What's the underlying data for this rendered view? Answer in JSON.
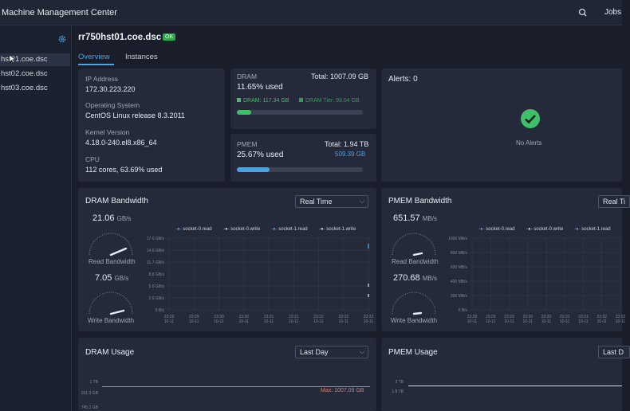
{
  "app_title": "Machine Management Center",
  "top_jobs": "Jobs",
  "sidebar": {
    "items": [
      {
        "label": "hst01.coe.dsc"
      },
      {
        "label": "hst02.coe.dsc"
      },
      {
        "label": "hst03.coe.dsc"
      }
    ]
  },
  "host": {
    "name": "rr750hst01.coe.dsc",
    "status": "OK"
  },
  "tabs": [
    {
      "label": "Overview"
    },
    {
      "label": "Instances"
    }
  ],
  "info": {
    "ip_label": "IP Address",
    "ip_value": "172.30.223.220",
    "os_label": "Operating System",
    "os_value": "CentOS Linux release 8.3.2011",
    "kernel_label": "Kernel Version",
    "kernel_value": "4.18.0-240.el8.x86_64",
    "cpu_label": "CPU",
    "cpu_value": "112 cores, 63.69% used"
  },
  "dram": {
    "label": "DRAM",
    "total": "Total: 1007.09 GB",
    "used": "11.65% used",
    "dram_legend": "DRAM: 117.34 GB",
    "tier_legend": "DRAM Tier: 99.04 GB",
    "dram_fraction": 0.1165,
    "tier_fraction": 0.0983
  },
  "pmem": {
    "label": "PMEM",
    "total": "Total: 1.94 TB",
    "used": "25.67% used",
    "sub": "509.39 GB",
    "fraction": 0.2567
  },
  "alerts": {
    "title": "Alerts: 0",
    "empty": "No Alerts"
  },
  "dram_bandwidth": {
    "title": "DRAM Bandwidth",
    "range": "Real Time",
    "read_value": "21.06",
    "read_unit": "GB/s",
    "read_label": "Read Bandwidth",
    "write_value": "7.05",
    "write_unit": "GB/s",
    "write_label": "Write Bandwidth",
    "legend": [
      "socket-0.read",
      "socket-0.write",
      "socket-1.read",
      "socket-1.write"
    ],
    "y_ticks": [
      "17.6 GB/s",
      "14.6 GB/s",
      "11.7 GB/s",
      "8.8 GB/s",
      "5.8 GB/s",
      "2.9 GB/s",
      "0 B/s"
    ],
    "x_ticks": [
      "23:29 10-11",
      "23:29 10-11",
      "23:30 10-11",
      "23:30 10-11",
      "23:31 10-11",
      "23:31 10-11",
      "23:32 10-11",
      "23:32 10-11",
      "23:33 10-11"
    ]
  },
  "pmem_bandwidth": {
    "title": "PMEM Bandwidth",
    "range": "Real Ti",
    "read_value": "651.57",
    "read_unit": "MB/s",
    "read_label": "Read Bandwidth",
    "write_value": "270.68",
    "write_unit": "MB/s",
    "write_label": "Write Bandwidth",
    "legend": [
      "socket-0.read",
      "socket-0.write",
      "socket-1.read"
    ],
    "y_ticks": [
      "1000 MB/s",
      "800 MB/s",
      "600 MB/s",
      "400 MB/s",
      "200 MB/s",
      "0 B/s"
    ],
    "x_ticks": [
      "23:28 10-11",
      "23:29 10-11",
      "23:29 10-11",
      "23:30 10-11",
      "23:30 10-11",
      "23:31 10-11",
      "23:31 10-11",
      "23:32 10-11",
      "23:32 10-11"
    ]
  },
  "dram_usage": {
    "title": "DRAM Usage",
    "range": "Last Day",
    "y_ticks": [
      "1 TB",
      "931.3 GB",
      "745.1 GB"
    ],
    "max_label": "Max: 1007.09 GB"
  },
  "pmem_usage": {
    "title": "PMEM Usage",
    "range": "Last D",
    "y_ticks": [
      "2 TB",
      "1.8 TB"
    ]
  },
  "colors": {
    "accent": "#4aa3df",
    "ok": "#37a155",
    "dram": "#3fbf6a",
    "tier": "#2f9e55",
    "pmem": "#4aa3df",
    "max_line": "#e07a6b"
  }
}
